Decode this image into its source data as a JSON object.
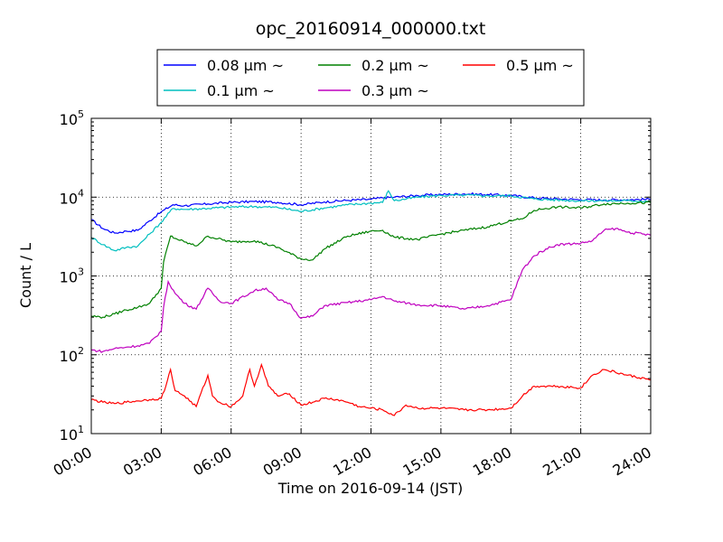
{
  "chart_data": {
    "type": "line",
    "title": "opc_20160914_000000.txt",
    "xlabel": "Time on 2016-09-14 (JST)",
    "ylabel": "Count / L",
    "x_unit": "hours (JST)",
    "xlim": [
      0,
      24
    ],
    "ylim": [
      10,
      100000
    ],
    "y_scale": "log",
    "grid": true,
    "legend_position": "top-center, above plot",
    "x_ticks": [
      {
        "value": 0,
        "label": "00:00"
      },
      {
        "value": 3,
        "label": "03:00"
      },
      {
        "value": 6,
        "label": "06:00"
      },
      {
        "value": 9,
        "label": "09:00"
      },
      {
        "value": 12,
        "label": "12:00"
      },
      {
        "value": 15,
        "label": "15:00"
      },
      {
        "value": 18,
        "label": "18:00"
      },
      {
        "value": 21,
        "label": "21:00"
      },
      {
        "value": 24,
        "label": "24:00"
      }
    ],
    "y_ticks": [
      {
        "value": 10,
        "base": "10",
        "exp": "1"
      },
      {
        "value": 100,
        "base": "10",
        "exp": "2"
      },
      {
        "value": 1000,
        "base": "10",
        "exp": "3"
      },
      {
        "value": 10000,
        "base": "10",
        "exp": "4"
      },
      {
        "value": 100000,
        "base": "10",
        "exp": "5"
      }
    ],
    "series": [
      {
        "name": "0.08 μm ~",
        "color": "#0000ff",
        "x": [
          0,
          0.5,
          1,
          1.5,
          2,
          2.5,
          3,
          3.5,
          4,
          5,
          6,
          7,
          8,
          9,
          10,
          11,
          12,
          12.5,
          13,
          14,
          15,
          16,
          17,
          18,
          19,
          20,
          21,
          22,
          23,
          24
        ],
        "y": [
          5200,
          4000,
          3500,
          3700,
          3800,
          5000,
          6500,
          8000,
          7800,
          8200,
          8600,
          8800,
          8600,
          8000,
          8700,
          9100,
          9400,
          9800,
          10000,
          10500,
          10800,
          11000,
          10800,
          10500,
          9800,
          9500,
          9300,
          9200,
          9300,
          9400
        ]
      },
      {
        "name": "0.1 μm ~",
        "color": "#00bfbf",
        "x": [
          0,
          0.5,
          1,
          1.5,
          2,
          2.5,
          3,
          3.5,
          4,
          5,
          6,
          7,
          8,
          9,
          10,
          11,
          12,
          12.5,
          12.75,
          13,
          14,
          15,
          16,
          17,
          18,
          19,
          20,
          21,
          22,
          23,
          24
        ],
        "y": [
          3100,
          2500,
          2100,
          2300,
          2400,
          3400,
          4800,
          7200,
          7000,
          7200,
          7500,
          7600,
          7400,
          6600,
          7300,
          8000,
          8400,
          8600,
          12000,
          9000,
          10000,
          10500,
          10600,
          10400,
          10400,
          9500,
          9200,
          9000,
          9000,
          9000,
          8900
        ]
      },
      {
        "name": "0.2 μm ~",
        "color": "#008000",
        "x": [
          0,
          0.5,
          1,
          1.5,
          2,
          2.5,
          3,
          3.1,
          3.4,
          3.6,
          4,
          4.5,
          5,
          6,
          7,
          8,
          9,
          9.5,
          10,
          11,
          12,
          12.5,
          13,
          14,
          15,
          16,
          17,
          18,
          18.5,
          19,
          19.5,
          20,
          21,
          22,
          23,
          24
        ],
        "y": [
          310,
          300,
          330,
          370,
          400,
          450,
          700,
          1500,
          3200,
          3000,
          2700,
          2400,
          3200,
          2700,
          2800,
          2300,
          1650,
          1600,
          2200,
          3200,
          3700,
          3800,
          3100,
          2900,
          3400,
          3800,
          4200,
          5000,
          5300,
          6800,
          7200,
          7500,
          7300,
          8200,
          8400,
          8500
        ]
      },
      {
        "name": "0.3 μm ~",
        "color": "#bf00bf",
        "x": [
          0,
          0.5,
          1,
          1.5,
          2,
          2.5,
          3,
          3.1,
          3.3,
          3.6,
          4,
          4.5,
          5,
          5.5,
          6,
          7,
          7.5,
          8,
          8.5,
          9,
          9.5,
          10,
          11,
          12,
          12.5,
          13,
          14,
          15,
          16,
          17,
          18,
          18.5,
          19,
          19.5,
          20,
          21,
          21.5,
          22,
          22.5,
          23,
          24
        ],
        "y": [
          115,
          110,
          120,
          125,
          130,
          140,
          200,
          400,
          850,
          600,
          450,
          380,
          700,
          480,
          450,
          650,
          700,
          500,
          450,
          290,
          310,
          420,
          460,
          500,
          550,
          480,
          430,
          420,
          380,
          420,
          500,
          1200,
          1800,
          2200,
          2500,
          2600,
          2800,
          3800,
          4000,
          3600,
          3300
        ]
      },
      {
        "name": "0.5 μm ~",
        "color": "#ff0000",
        "x": [
          0,
          0.5,
          1,
          1.5,
          2,
          2.5,
          3,
          3.2,
          3.4,
          3.6,
          4,
          4.5,
          5,
          5.2,
          5.5,
          6,
          6.5,
          6.8,
          7,
          7.3,
          7.6,
          8,
          8.5,
          9,
          9.5,
          10,
          10.5,
          11,
          11.5,
          12,
          12.5,
          13,
          13.5,
          14,
          15,
          16,
          17,
          18,
          18.5,
          19,
          20,
          21,
          21.5,
          22,
          23,
          24
        ],
        "y": [
          27,
          25,
          24,
          25,
          26,
          27,
          28,
          40,
          65,
          35,
          30,
          22,
          55,
          30,
          25,
          22,
          30,
          65,
          40,
          75,
          40,
          30,
          32,
          23,
          25,
          28,
          27,
          25,
          22,
          21,
          20,
          17,
          23,
          21,
          21,
          20,
          20,
          21,
          30,
          40,
          40,
          38,
          55,
          65,
          55,
          48
        ]
      }
    ]
  }
}
